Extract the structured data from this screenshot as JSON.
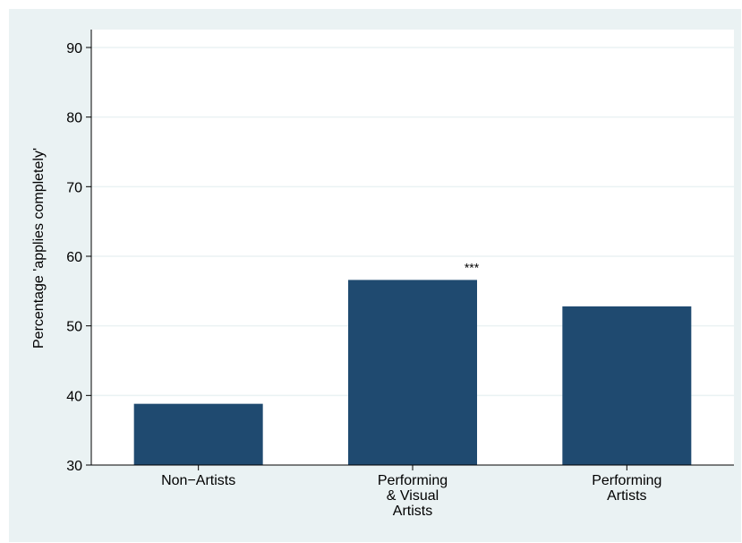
{
  "chart_data": {
    "type": "bar",
    "title": "",
    "xlabel": "",
    "ylabel": "Percentage 'applies completely'",
    "categories": [
      [
        "Non−Artists"
      ],
      [
        "Performing",
        "& Visual",
        "Artists"
      ],
      [
        "Performing",
        "Artists"
      ]
    ],
    "values": [
      38.8,
      56.6,
      52.8
    ],
    "annotations": [
      "",
      "***",
      ""
    ],
    "ylim": [
      30,
      90
    ],
    "yticks": [
      30,
      40,
      50,
      60,
      70,
      80,
      90
    ],
    "grid": true,
    "legend": "none",
    "colors": {
      "bar": "#1f4a70",
      "outer_background": "#eaf2f3",
      "plot_background": "#ffffff",
      "grid": "#eaf2f3",
      "axis": "#000000"
    }
  }
}
